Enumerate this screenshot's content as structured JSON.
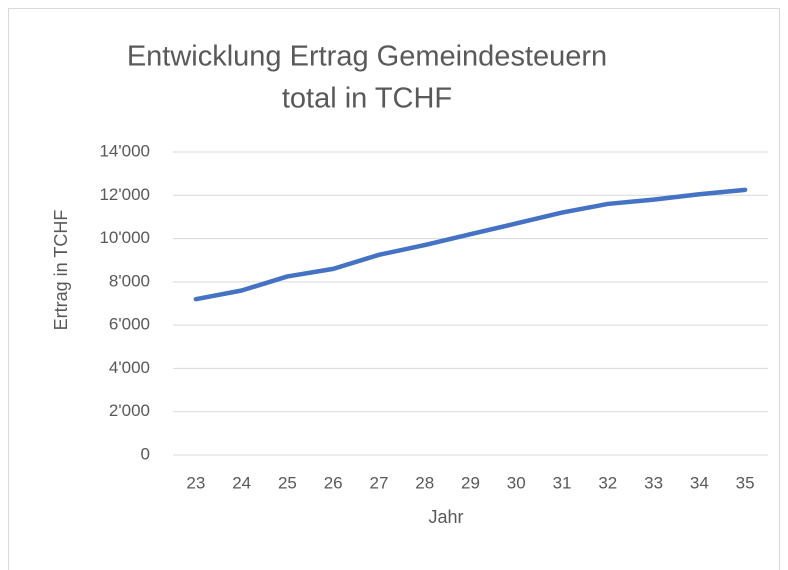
{
  "chart_data": {
    "type": "line",
    "title": [
      "Entwicklung Ertrag Gemeindesteuern",
      "total in TCHF"
    ],
    "x_label": "Jahr",
    "y_label": "Ertrag in TCHF",
    "categories": [
      "23",
      "24",
      "25",
      "26",
      "27",
      "28",
      "29",
      "30",
      "31",
      "32",
      "33",
      "34",
      "35"
    ],
    "values": [
      7200,
      7600,
      8250,
      8600,
      9250,
      9700,
      10200,
      10700,
      11200,
      11600,
      11800,
      12050,
      12250
    ],
    "color": "#4472c4",
    "ylim": [
      0,
      14000
    ],
    "yticks": [
      0,
      {
        "value": 2000,
        "label": "2'000"
      },
      {
        "value": 4000,
        "label": "4'000"
      },
      {
        "value": 6000,
        "label": "6'000"
      },
      {
        "value": 8000,
        "label": "8'000"
      },
      {
        "value": 10000,
        "label": "10'000"
      },
      {
        "value": 12000,
        "label": "12'000"
      },
      {
        "value": 14000,
        "label": "14'000"
      }
    ],
    "grid": true
  }
}
